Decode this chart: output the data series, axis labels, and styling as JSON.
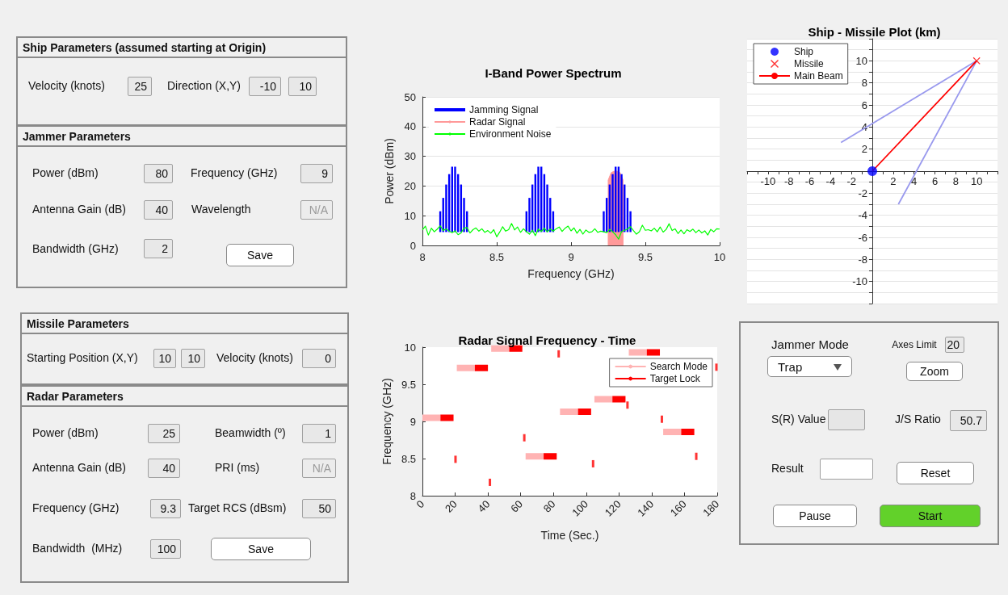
{
  "chart_data": [
    {
      "type": "other",
      "title": "Ship Parameters (assumed starting at Origin)",
      "annotations": [
        "Velocity (knots)",
        "25",
        "Direction (X,Y)",
        "-10",
        "10"
      ]
    },
    {
      "type": "other",
      "title": "Jammer Parameters",
      "annotations": [
        "Power (dBm)",
        "80",
        "Frequency (GHz)",
        "9",
        "Antenna Gain (dB)",
        "40",
        "Wavelength",
        "N/A",
        "Bandwidth (GHz)",
        "2",
        "Save"
      ]
    },
    {
      "type": "line",
      "title": "I-Band Power Spectrum",
      "xlabel": "Frequency (GHz)",
      "ylabel": "Power (dBm)",
      "xlim": [
        8,
        10
      ],
      "ylim": [
        0,
        50
      ],
      "xticks": [
        8,
        8.5,
        9,
        9.5,
        10
      ],
      "yticks": [
        0,
        10,
        20,
        30,
        40,
        50
      ],
      "grid": "y",
      "legend": "top left",
      "series": [
        {
          "name": "Jamming Signal",
          "type": "bar",
          "color": "#0000ff",
          "x": [
            8.12,
            8.14,
            8.16,
            8.18,
            8.2,
            8.22,
            8.24,
            8.26,
            8.28,
            8.3,
            8.7,
            8.72,
            8.74,
            8.76,
            8.78,
            8.8,
            8.82,
            8.84,
            8.86,
            8.88,
            9.22,
            9.24,
            9.26,
            9.28,
            9.3,
            9.32,
            9.34,
            9.36,
            9.38,
            9.4
          ],
          "base": [
            4.5,
            4.5,
            4.5,
            4.5,
            4.5,
            4.5,
            4.5,
            4.5,
            4.5,
            4.5,
            4.5,
            4.5,
            4.5,
            4.5,
            4.5,
            4.5,
            4.5,
            4.5,
            4.5,
            4.5,
            4.5,
            4.5,
            4.5,
            4.5,
            4.5,
            4.5,
            4.5,
            4.5,
            4.5,
            4.5
          ],
          "values": [
            7,
            11.5,
            16,
            19.5,
            22,
            22,
            19.5,
            16,
            11.5,
            7,
            7,
            11.5,
            16,
            19.5,
            22,
            22,
            19.5,
            16,
            11.5,
            7,
            7,
            11.5,
            16,
            19.5,
            22,
            22,
            19.5,
            16,
            11.5,
            7
          ]
        },
        {
          "name": "Radar Signal",
          "type": "area",
          "color": "#ff9999",
          "x": [
            9.25,
            9.25,
            9.27,
            9.29,
            9.31,
            9.33,
            9.35,
            9.35
          ],
          "values": [
            0,
            22,
            24.5,
            25,
            25,
            24.5,
            22,
            0
          ]
        },
        {
          "name": "Environment Noise",
          "type": "line",
          "color": "#00ff00",
          "x": [
            8,
            8.02,
            8.04,
            8.06,
            8.08,
            8.1,
            8.12,
            8.14,
            8.16,
            8.18,
            8.2,
            8.22,
            8.24,
            8.26,
            8.28,
            8.3,
            8.32,
            8.34,
            8.36,
            8.38,
            8.4,
            8.42,
            8.44,
            8.46,
            8.48,
            8.5,
            8.52,
            8.54,
            8.56,
            8.58,
            8.6,
            8.62,
            8.64,
            8.66,
            8.68,
            8.7,
            8.72,
            8.74,
            8.76,
            8.78,
            8.8,
            8.82,
            8.84,
            8.86,
            8.88,
            8.9,
            8.92,
            8.94,
            8.96,
            8.98,
            9,
            9.02,
            9.04,
            9.06,
            9.08,
            9.1,
            9.12,
            9.14,
            9.16,
            9.18,
            9.2,
            9.22,
            9.24,
            9.26,
            9.28,
            9.3,
            9.32,
            9.34,
            9.36,
            9.38,
            9.4,
            9.42,
            9.44,
            9.46,
            9.48,
            9.5,
            9.52,
            9.54,
            9.56,
            9.58,
            9.6,
            9.62,
            9.64,
            9.66,
            9.68,
            9.7,
            9.72,
            9.74,
            9.76,
            9.78,
            9.8,
            9.82,
            9.84,
            9.86,
            9.88,
            9.9,
            9.92,
            9.94,
            9.96,
            9.98,
            10
          ],
          "values": [
            5.2,
            6.5,
            3.5,
            5.8,
            4.6,
            5.5,
            6.6,
            5,
            5.6,
            4.8,
            4.3,
            4.9,
            3.6,
            4.2,
            5.8,
            6,
            4.2,
            5.3,
            5.9,
            4.8,
            5.6,
            4.4,
            5,
            4.1,
            5.3,
            2.9,
            4.5,
            6.3,
            4.8,
            5.3,
            7.4,
            5.2,
            6.2,
            4.4,
            5.6,
            4.6,
            3.8,
            5.1,
            3.3,
            5.5,
            4.7,
            5.8,
            4.6,
            5.5,
            4.8,
            5.6,
            6.2,
            4.7,
            5.8,
            6.5,
            4.9,
            5.9,
            4.1,
            5.4,
            3.8,
            5.2,
            4.4,
            4.6,
            5.6,
            4.4,
            4.8,
            4.6,
            4.3,
            5.4,
            4.6,
            3.6,
            2.1,
            4.7,
            5.1,
            5.5,
            6.3,
            5,
            3.8,
            4.6,
            6.8,
            5.1,
            5.3,
            4.9,
            5.8,
            4.6,
            6.2,
            4.5,
            5.4,
            7.3,
            5,
            5.6,
            4,
            5.2,
            3.9,
            5.3,
            4.7,
            5.5,
            4.3,
            5.2,
            4.2,
            4.9,
            3.5,
            5.4,
            4.6,
            5.6,
            5.5
          ]
        }
      ]
    },
    {
      "type": "scatter",
      "title": "Ship - Missile Plot (km)",
      "xlim": [
        -12,
        12
      ],
      "ylim": [
        -12,
        12
      ],
      "xticks": [
        {
          "value": -12,
          "label": null
        },
        {
          "value": -11,
          "label": null
        },
        -10,
        {
          "value": -9,
          "label": null
        },
        -8,
        {
          "value": -7,
          "label": null
        },
        -6,
        {
          "value": -5,
          "label": null
        },
        -4,
        {
          "value": -3,
          "label": null
        },
        -2,
        {
          "value": -1,
          "label": null
        },
        {
          "value": 0,
          "label": null
        },
        {
          "value": 1,
          "label": null
        },
        2,
        {
          "value": 3,
          "label": null
        },
        4,
        {
          "value": 5,
          "label": null
        },
        6,
        {
          "value": 7,
          "label": null
        },
        8,
        {
          "value": 9,
          "label": null
        },
        10,
        {
          "value": 11,
          "label": null
        },
        {
          "value": 12,
          "label": null
        }
      ],
      "yticks": [
        {
          "value": -12,
          "label": null
        },
        {
          "value": -11,
          "label": null
        },
        -10,
        {
          "value": -9,
          "label": null
        },
        -8,
        {
          "value": -7,
          "label": null
        },
        -6,
        {
          "value": -5,
          "label": null
        },
        -4,
        {
          "value": -3,
          "label": null
        },
        -2,
        {
          "value": -1,
          "label": null
        },
        {
          "value": 0,
          "label": null
        },
        {
          "value": 1,
          "label": null
        },
        2,
        {
          "value": 3,
          "label": null
        },
        4,
        {
          "value": 5,
          "label": null
        },
        6,
        {
          "value": 7,
          "label": null
        },
        8,
        {
          "value": 9,
          "label": null
        },
        10,
        {
          "value": 11,
          "label": null
        },
        {
          "value": 12,
          "label": null
        }
      ],
      "grid": "y",
      "legend": "top left",
      "series": [
        {
          "type": "line",
          "color": "#9999ee",
          "x": [
            -3,
            10
          ],
          "values": [
            2.6,
            10
          ]
        },
        {
          "type": "line",
          "color": "#9999ee",
          "x": [
            2.5,
            10
          ],
          "values": [
            -3,
            10
          ]
        },
        {
          "name": "Ship",
          "type": "scatter",
          "marker": "circle",
          "color": "#0000ff",
          "x": [
            0
          ],
          "values": [
            0
          ]
        },
        {
          "name": "Missile",
          "type": "scatter",
          "marker": "cross",
          "color": "#ff0000",
          "x": [
            10
          ],
          "values": [
            10
          ]
        },
        {
          "name": "Main Beam",
          "type": "line",
          "color": "#ff0000",
          "x": [
            0,
            10
          ],
          "values": [
            0,
            10
          ]
        }
      ]
    },
    {
      "type": "other",
      "title": "Missile Parameters",
      "annotations": [
        "Starting Position (X,Y)",
        "10",
        "10",
        "Velocity (knots)",
        "0"
      ]
    },
    {
      "type": "other",
      "title": "Radar Parameters",
      "annotations": [
        "Power (dBm)",
        "25",
        "Beamwidth (º)",
        "1",
        "Antenna Gain (dB)",
        "40",
        "PRI (ms)",
        "N/A",
        "Frequency (GHz)",
        "9.3",
        "Target RCS (dBsm)",
        "50",
        "Bandwidth  (MHz)",
        "100",
        "Save"
      ]
    },
    {
      "type": "line",
      "title": "Radar Signal Frequency - Time",
      "xlabel": "Time (Sec.)",
      "ylabel": "Frequency (GHz)",
      "xlim": [
        0,
        180
      ],
      "ylim": [
        8,
        10
      ],
      "xticks": [
        0,
        20,
        40,
        60,
        80,
        100,
        120,
        140,
        160,
        180
      ],
      "yticks": [
        8,
        8.5,
        9,
        9.5,
        10
      ],
      "legend": "top right",
      "series": [
        {
          "name": "Search Mode",
          "color": "#ffb3b3",
          "x": [
            0,
            11,
            null,
            21,
            32,
            null,
            42,
            53,
            null,
            63,
            74,
            null,
            84,
            95,
            null,
            105,
            116,
            null,
            126,
            137,
            null,
            147,
            158
          ],
          "values": [
            9.05,
            9.05,
            null,
            9.72,
            9.72,
            null,
            9.98,
            9.98,
            null,
            8.53,
            8.53,
            null,
            9.13,
            9.13,
            null,
            9.3,
            9.3,
            null,
            9.93,
            9.93,
            null,
            8.86,
            8.86
          ]
        },
        {
          "name": "Target Lock",
          "color": "#ff0000",
          "x": [
            11,
            19,
            null,
            32,
            40,
            null,
            53,
            61,
            null,
            74,
            82,
            null,
            95,
            103,
            null,
            116,
            124,
            null,
            137,
            145,
            null,
            158,
            166
          ],
          "values": [
            9.05,
            9.05,
            null,
            9.72,
            9.72,
            null,
            9.98,
            9.98,
            null,
            8.53,
            8.53,
            null,
            9.13,
            9.13,
            null,
            9.3,
            9.3,
            null,
            9.93,
            9.93,
            null,
            8.86,
            8.86
          ]
        },
        {
          "type": "scatter",
          "marker": "square",
          "color": "#ff0000",
          "x": [
            20.2,
            41.2,
            62.2,
            83.2,
            104.2,
            125.2,
            146.2,
            167.2,
            179.5
          ],
          "values": [
            8.49,
            8.18,
            8.78,
            9.91,
            8.43,
            9.22,
            9.03,
            8.53,
            9.73
          ]
        }
      ]
    },
    {
      "type": "other",
      "annotations": [
        "Jammer Mode",
        "Trap",
        "Axes Limit",
        "20",
        "Zoom",
        "S(R) Value",
        "J/S Ratio",
        "50.7",
        "Result",
        "Reset",
        "Pause",
        "Start"
      ]
    }
  ]
}
